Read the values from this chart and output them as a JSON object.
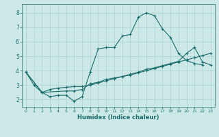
{
  "xlabel": "Humidex (Indice chaleur)",
  "bg_color": "#cce9e8",
  "grid_color": "#afd4d2",
  "line_color": "#1a6b6b",
  "xlim": [
    -0.5,
    23.5
  ],
  "ylim": [
    1.5,
    8.6
  ],
  "xticks": [
    0,
    1,
    2,
    3,
    4,
    5,
    6,
    7,
    8,
    9,
    10,
    11,
    12,
    13,
    14,
    15,
    16,
    17,
    18,
    19,
    20,
    21,
    22,
    23
  ],
  "yticks": [
    2,
    3,
    4,
    5,
    6,
    7,
    8
  ],
  "line1_x": [
    0,
    1,
    2,
    3,
    4,
    5,
    6,
    7,
    8,
    9,
    10,
    11,
    12,
    13,
    14,
    15,
    16,
    17,
    18,
    19,
    20,
    21,
    22
  ],
  "line1_y": [
    3.9,
    3.0,
    2.5,
    2.2,
    2.3,
    2.3,
    1.9,
    2.2,
    3.9,
    5.5,
    5.6,
    5.6,
    6.4,
    6.5,
    7.7,
    8.0,
    7.8,
    6.9,
    6.3,
    5.2,
    4.7,
    4.5,
    4.4
  ],
  "line2_x": [
    0,
    2,
    3,
    4,
    5,
    6,
    7,
    8,
    9,
    10,
    11,
    12,
    13,
    14,
    15,
    16,
    17,
    18,
    19,
    20,
    21,
    22,
    23
  ],
  "line2_y": [
    3.9,
    2.5,
    2.7,
    2.8,
    2.85,
    2.9,
    2.9,
    3.0,
    3.15,
    3.3,
    3.45,
    3.6,
    3.7,
    3.85,
    4.0,
    4.15,
    4.3,
    4.45,
    4.6,
    4.75,
    4.9,
    5.05,
    5.2
  ],
  "line3_x": [
    0,
    2,
    5,
    6,
    7,
    8,
    9,
    10,
    11,
    12,
    13,
    14,
    15,
    16,
    17,
    18,
    19,
    20,
    21,
    22,
    23
  ],
  "line3_y": [
    3.9,
    2.5,
    2.6,
    2.6,
    2.7,
    3.1,
    3.2,
    3.4,
    3.5,
    3.6,
    3.75,
    3.9,
    4.1,
    4.2,
    4.35,
    4.5,
    4.65,
    5.2,
    5.6,
    4.6,
    4.4
  ]
}
